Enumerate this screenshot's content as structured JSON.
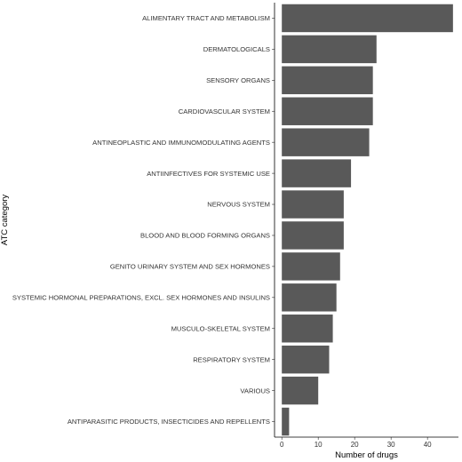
{
  "chart_data": {
    "type": "bar",
    "orientation": "horizontal",
    "xlabel": "Number of drugs",
    "ylabel": "ATC category",
    "xlim": [
      -2,
      48.5
    ],
    "xticks": [
      0,
      10,
      20,
      30,
      40
    ],
    "grid": false,
    "bar_color": "#595959",
    "categories": [
      "ALIMENTARY TRACT AND METABOLISM",
      "DERMATOLOGICALS",
      "SENSORY ORGANS",
      "CARDIOVASCULAR SYSTEM",
      "ANTINEOPLASTIC AND IMMUNOMODULATING AGENTS",
      "ANTIINFECTIVES FOR SYSTEMIC USE",
      "NERVOUS SYSTEM",
      "BLOOD AND BLOOD FORMING ORGANS",
      "GENITO URINARY SYSTEM AND SEX HORMONES",
      "SYSTEMIC HORMONAL PREPARATIONS, EXCL. SEX HORMONES AND INSULINS",
      "MUSCULO-SKELETAL SYSTEM",
      "RESPIRATORY SYSTEM",
      "VARIOUS",
      "ANTIPARASITIC PRODUCTS, INSECTICIDES AND REPELLENTS"
    ],
    "values": [
      47,
      26,
      25,
      25,
      24,
      19,
      17,
      17,
      16,
      15,
      14,
      13,
      10,
      2
    ]
  }
}
